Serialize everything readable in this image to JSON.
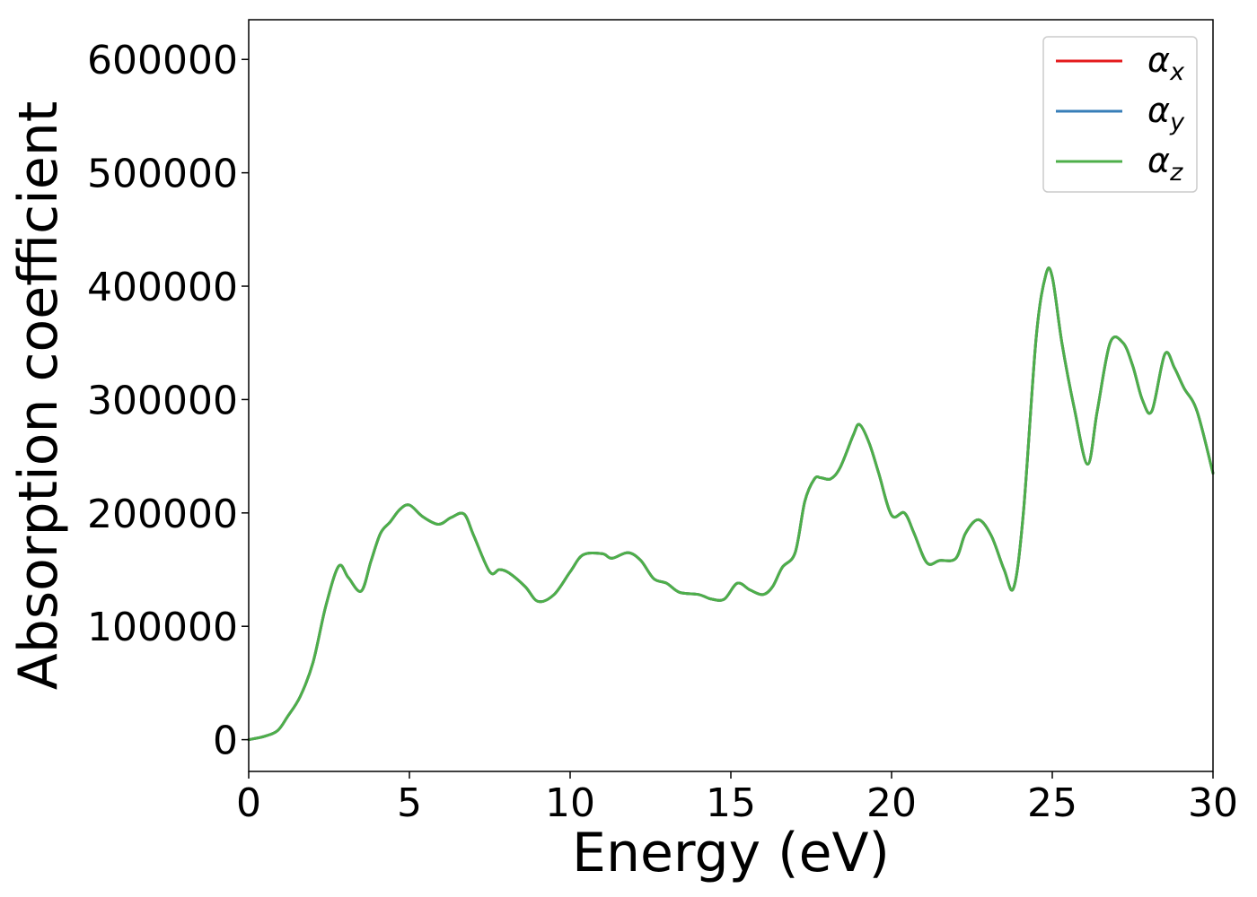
{
  "chart_data": {
    "type": "line",
    "title": "",
    "xlabel": "Energy (eV)",
    "ylabel": "Absorption coefficient",
    "xlim": [
      0,
      30
    ],
    "ylim": [
      -28000,
      635000
    ],
    "xticks": [
      0,
      5,
      10,
      15,
      20,
      25,
      30
    ],
    "yticks": [
      0,
      100000,
      200000,
      300000,
      400000,
      500000,
      600000
    ],
    "grid": false,
    "legend_position": "top-right",
    "x": [
      0,
      0.5,
      0.9,
      1.2,
      1.6,
      2.0,
      2.4,
      2.8,
      3.1,
      3.5,
      3.8,
      4.1,
      4.4,
      4.7,
      5.0,
      5.4,
      5.9,
      6.3,
      6.7,
      7.0,
      7.5,
      7.8,
      8.1,
      8.6,
      9.0,
      9.5,
      10.0,
      10.4,
      11.0,
      11.3,
      11.8,
      12.2,
      12.6,
      13.0,
      13.4,
      14.0,
      14.4,
      14.8,
      15.2,
      15.6,
      16.0,
      16.3,
      16.6,
      17.0,
      17.3,
      17.6,
      17.8,
      18.1,
      18.4,
      18.8,
      19.0,
      19.3,
      19.6,
      20.0,
      20.4,
      20.7,
      21.1,
      21.5,
      22.0,
      22.3,
      22.7,
      23.1,
      23.5,
      23.8,
      24.1,
      24.5,
      24.8,
      25.0,
      25.3,
      25.7,
      26.1,
      26.4,
      26.8,
      27.2,
      27.5,
      27.8,
      28.1,
      28.5,
      28.8,
      29.1,
      29.5,
      30.0
    ],
    "series": [
      {
        "name": "αx",
        "color": "#e41a1c",
        "values": [
          0,
          3000,
          8000,
          20000,
          38000,
          68000,
          118000,
          153000,
          143000,
          131000,
          157000,
          182000,
          192000,
          203000,
          207000,
          197000,
          190000,
          196000,
          199000,
          180000,
          148000,
          150000,
          147000,
          135000,
          122000,
          128000,
          148000,
          163000,
          164000,
          160000,
          165000,
          158000,
          142000,
          138000,
          130000,
          128000,
          124000,
          124000,
          138000,
          132000,
          128000,
          135000,
          152000,
          165000,
          210000,
          230000,
          231000,
          230000,
          240000,
          268000,
          278000,
          262000,
          235000,
          198000,
          200000,
          182000,
          156000,
          158000,
          160000,
          182000,
          194000,
          180000,
          150000,
          134000,
          200000,
          355000,
          410000,
          408000,
          350000,
          290000,
          243000,
          290000,
          350000,
          350000,
          330000,
          300000,
          290000,
          340000,
          328000,
          310000,
          290000,
          235000
        ]
      },
      {
        "name": "αy",
        "color": "#377eb8",
        "values": [
          0,
          3000,
          8000,
          20000,
          38000,
          68000,
          118000,
          153000,
          143000,
          131000,
          157000,
          182000,
          192000,
          203000,
          207000,
          197000,
          190000,
          196000,
          199000,
          180000,
          148000,
          150000,
          147000,
          135000,
          122000,
          128000,
          148000,
          163000,
          164000,
          160000,
          165000,
          158000,
          142000,
          138000,
          130000,
          128000,
          124000,
          124000,
          138000,
          132000,
          128000,
          135000,
          152000,
          165000,
          210000,
          230000,
          231000,
          230000,
          240000,
          268000,
          278000,
          262000,
          235000,
          198000,
          200000,
          182000,
          156000,
          158000,
          160000,
          182000,
          194000,
          180000,
          150000,
          134000,
          200000,
          355000,
          410000,
          408000,
          350000,
          290000,
          243000,
          290000,
          350000,
          350000,
          330000,
          300000,
          290000,
          340000,
          328000,
          310000,
          290000,
          235000
        ]
      },
      {
        "name": "αz",
        "color": "#4daf4a",
        "values": [
          0,
          3000,
          8000,
          20000,
          38000,
          68000,
          118000,
          153000,
          143000,
          131000,
          157000,
          182000,
          192000,
          203000,
          207000,
          197000,
          190000,
          196000,
          199000,
          180000,
          148000,
          150000,
          147000,
          135000,
          122000,
          128000,
          148000,
          163000,
          164000,
          160000,
          165000,
          158000,
          142000,
          138000,
          130000,
          128000,
          124000,
          124000,
          138000,
          132000,
          128000,
          135000,
          152000,
          165000,
          210000,
          230000,
          231000,
          230000,
          240000,
          268000,
          278000,
          262000,
          235000,
          198000,
          200000,
          182000,
          156000,
          158000,
          160000,
          182000,
          194000,
          180000,
          150000,
          134000,
          200000,
          355000,
          410000,
          408000,
          350000,
          290000,
          243000,
          290000,
          350000,
          350000,
          330000,
          300000,
          290000,
          340000,
          328000,
          310000,
          290000,
          235000
        ]
      }
    ],
    "legend": [
      {
        "symbol": "α",
        "subscript": "x",
        "color": "#e41a1c"
      },
      {
        "symbol": "α",
        "subscript": "y",
        "color": "#377eb8"
      },
      {
        "symbol": "α",
        "subscript": "z",
        "color": "#4daf4a"
      }
    ]
  }
}
